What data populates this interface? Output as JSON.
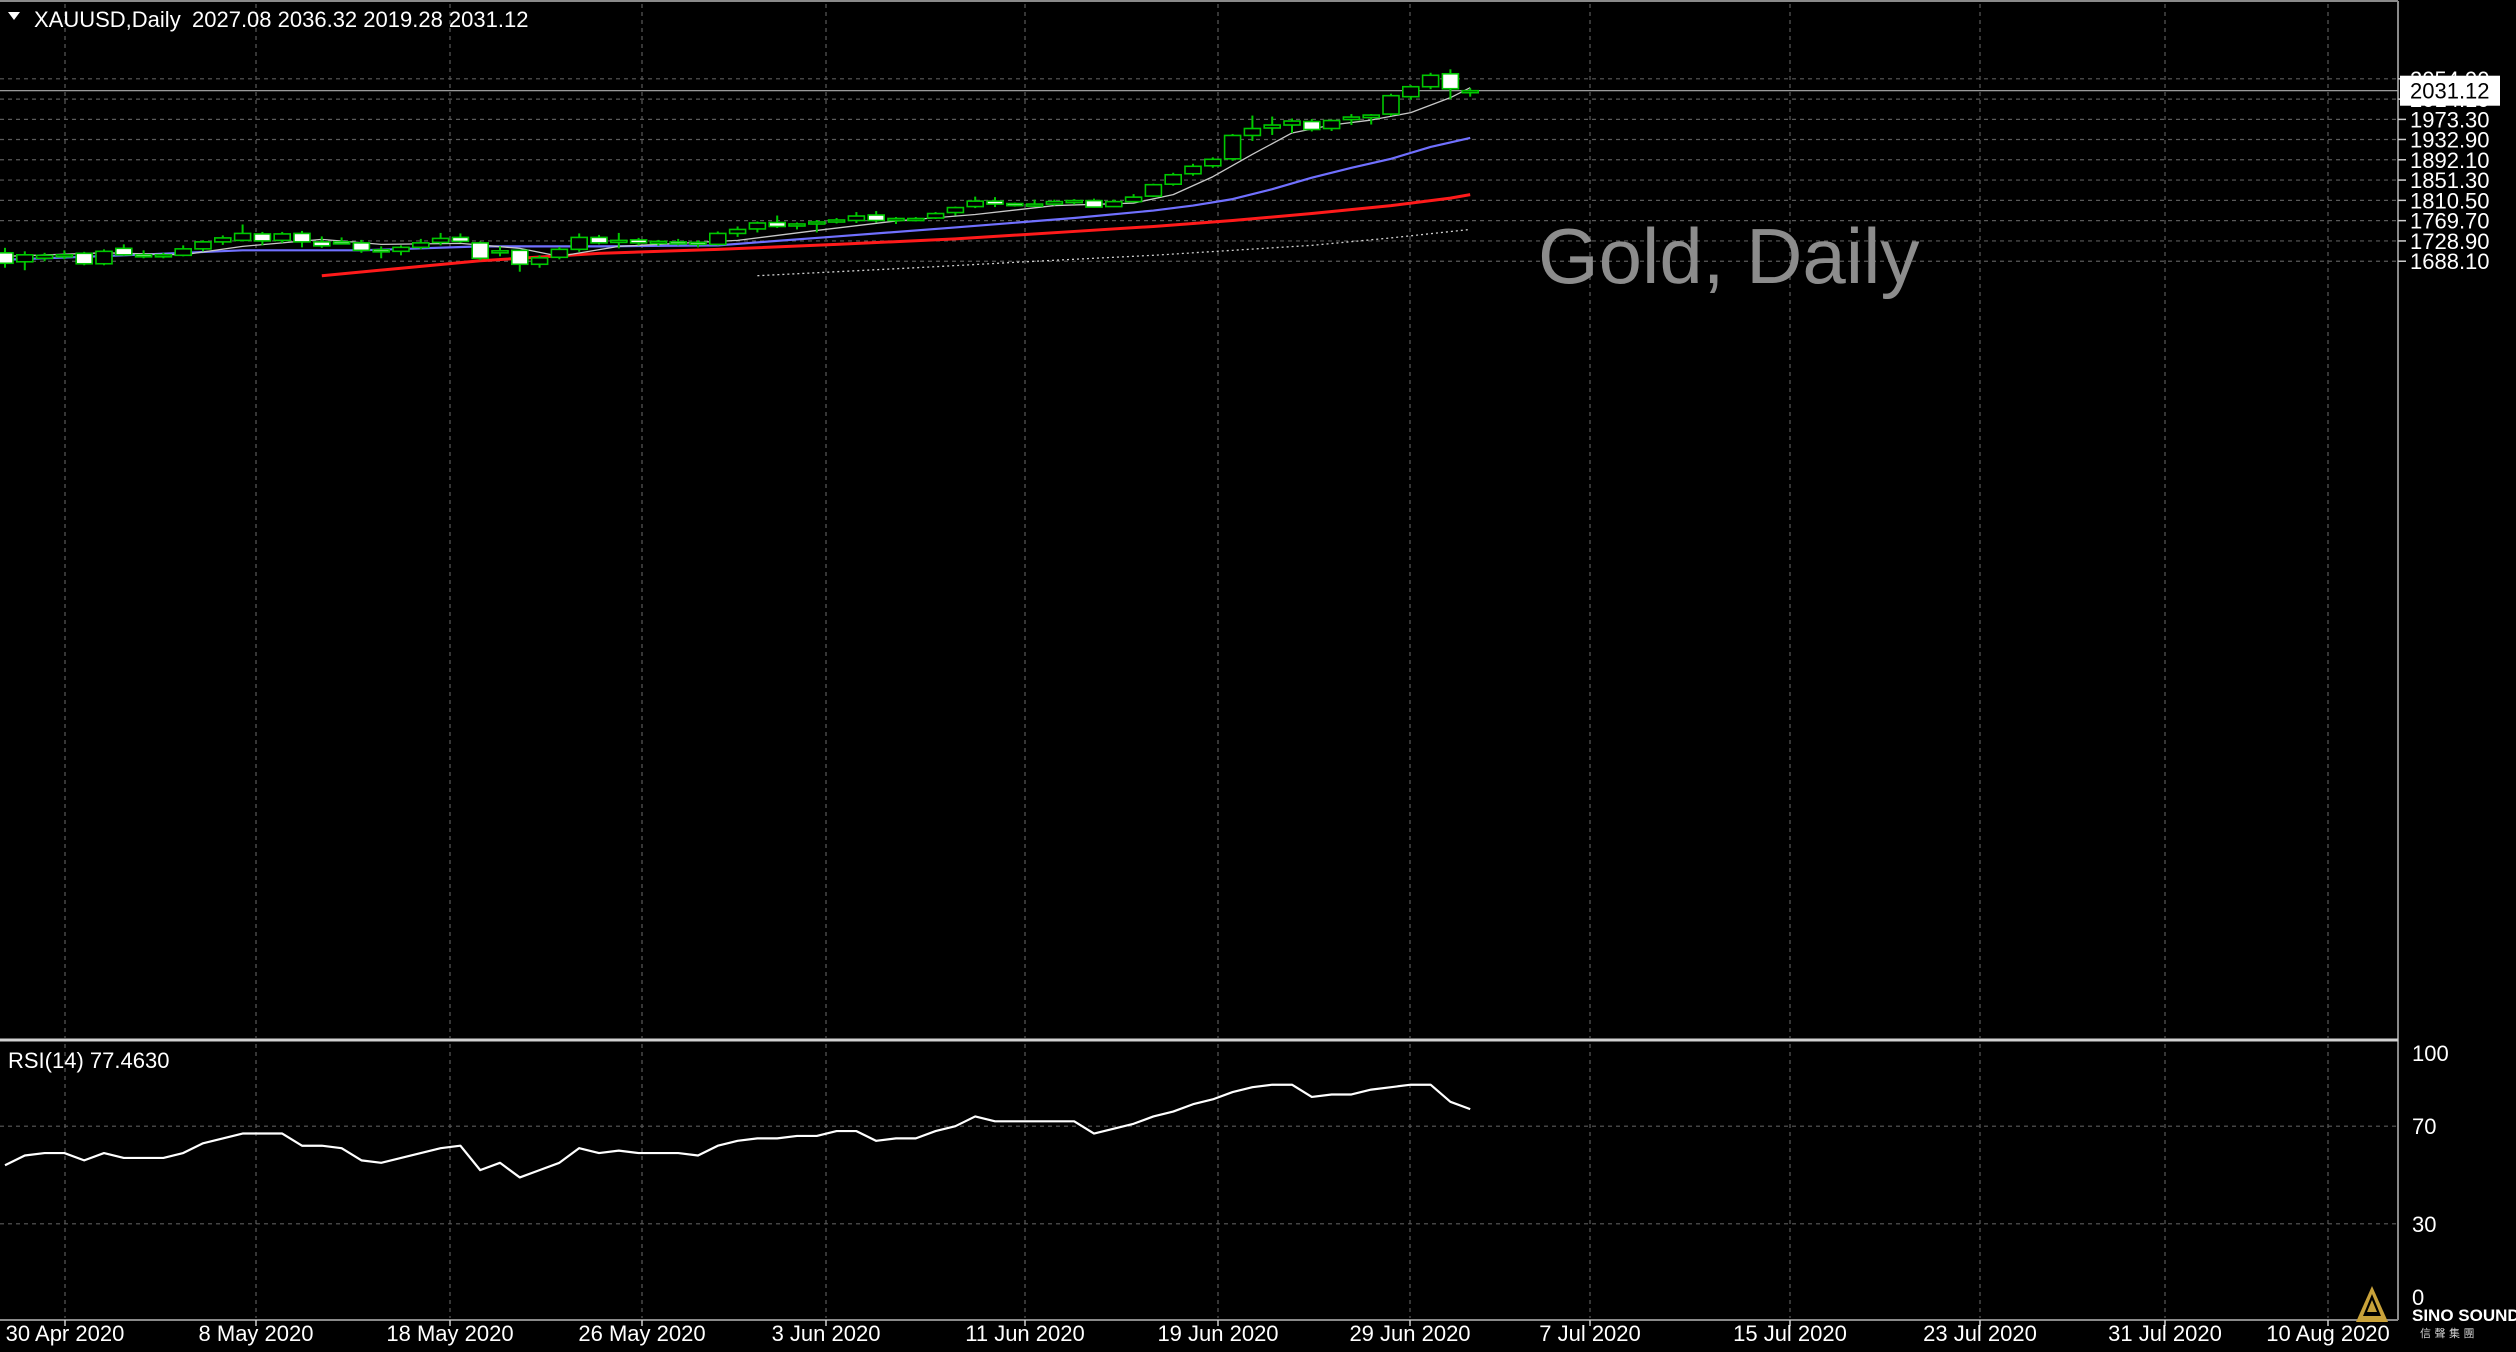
{
  "header": {
    "symbol_tf": "XAUUSD,Daily",
    "ohlc": "2027.08 2036.32 2019.28 2031.12"
  },
  "watermark": "Gold, Daily",
  "current_price_label": "2031.12",
  "rsi": {
    "label": "RSI(14) 77.4630",
    "levels": [
      "100",
      "70",
      "30",
      "0"
    ]
  },
  "logo": {
    "name": "SINO SOUND",
    "sub": "信 聲 集 團"
  },
  "colors": {
    "background": "#000000",
    "grid": "#5a5a5a",
    "bull_candle": "#00c800",
    "bear_candle_body": "#ffffff",
    "ma_fast": "#c8c8c8",
    "ma_mid": "#7070ff",
    "ma_slow": "#ff1a1a",
    "ma_long": "#cfcfcf",
    "rsi_line": "#ffffff"
  },
  "chart_data": [
    {
      "type": "candlestick",
      "title": "XAUUSD,Daily",
      "y_ticks": [
        "2054.90",
        "2014.10",
        "1973.30",
        "1932.90",
        "1892.10",
        "1851.30",
        "1810.50",
        "1769.70",
        "1728.90",
        "1688.10"
      ],
      "ylim": [
        1659,
        2080
      ],
      "x_ticks": [
        "30 Apr 2020",
        "8 May 2020",
        "18 May 2020",
        "26 May 2020",
        "3 Jun 2020",
        "11 Jun 2020",
        "19 Jun 2020",
        "29 Jun 2020",
        "7 Jul 2020",
        "15 Jul 2020",
        "23 Jul 2020",
        "31 Jul 2020",
        "10 Aug 2020"
      ],
      "grid": true,
      "candles": [
        {
          "o": 1705,
          "h": 1715,
          "c": 1684,
          "l": 1675
        },
        {
          "o": 1687,
          "h": 1708,
          "c": 1701,
          "l": 1670
        },
        {
          "o": 1694,
          "h": 1705,
          "c": 1700,
          "l": 1688
        },
        {
          "o": 1697,
          "h": 1710,
          "c": 1701,
          "l": 1692
        },
        {
          "o": 1704,
          "h": 1707,
          "c": 1683,
          "l": 1680
        },
        {
          "o": 1683,
          "h": 1712,
          "c": 1708,
          "l": 1680
        },
        {
          "o": 1714,
          "h": 1722,
          "c": 1701,
          "l": 1699
        },
        {
          "o": 1701,
          "h": 1710,
          "c": 1697,
          "l": 1694
        },
        {
          "o": 1698,
          "h": 1705,
          "c": 1701,
          "l": 1694
        },
        {
          "o": 1700,
          "h": 1720,
          "c": 1713,
          "l": 1698
        },
        {
          "o": 1713,
          "h": 1730,
          "c": 1727,
          "l": 1708
        },
        {
          "o": 1727,
          "h": 1740,
          "c": 1735,
          "l": 1721
        },
        {
          "o": 1730,
          "h": 1762,
          "c": 1744,
          "l": 1728
        },
        {
          "o": 1743,
          "h": 1747,
          "c": 1729,
          "l": 1720
        },
        {
          "o": 1730,
          "h": 1747,
          "c": 1743,
          "l": 1725
        },
        {
          "o": 1744,
          "h": 1749,
          "c": 1727,
          "l": 1716
        },
        {
          "o": 1727,
          "h": 1738,
          "c": 1719,
          "l": 1715
        },
        {
          "o": 1727,
          "h": 1736,
          "c": 1724,
          "l": 1722
        },
        {
          "o": 1725,
          "h": 1731,
          "c": 1710,
          "l": 1705
        },
        {
          "o": 1711,
          "h": 1718,
          "c": 1707,
          "l": 1694
        },
        {
          "o": 1708,
          "h": 1720,
          "c": 1716,
          "l": 1700
        },
        {
          "o": 1716,
          "h": 1733,
          "c": 1725,
          "l": 1712
        },
        {
          "o": 1726,
          "h": 1745,
          "c": 1734,
          "l": 1720
        },
        {
          "o": 1736,
          "h": 1744,
          "c": 1728,
          "l": 1725
        },
        {
          "o": 1725,
          "h": 1728,
          "c": 1694,
          "l": 1690
        },
        {
          "o": 1705,
          "h": 1718,
          "c": 1709,
          "l": 1698
        },
        {
          "o": 1710,
          "h": 1710,
          "c": 1682,
          "l": 1667
        },
        {
          "o": 1682,
          "h": 1700,
          "c": 1695,
          "l": 1675
        },
        {
          "o": 1696,
          "h": 1717,
          "c": 1712,
          "l": 1692
        },
        {
          "o": 1712,
          "h": 1744,
          "c": 1736,
          "l": 1707
        },
        {
          "o": 1736,
          "h": 1741,
          "c": 1725,
          "l": 1722
        },
        {
          "o": 1727,
          "h": 1745,
          "c": 1730,
          "l": 1714
        },
        {
          "o": 1731,
          "h": 1735,
          "c": 1725,
          "l": 1720
        },
        {
          "o": 1727,
          "h": 1731,
          "c": 1728,
          "l": 1719
        },
        {
          "o": 1727,
          "h": 1733,
          "c": 1726,
          "l": 1720
        },
        {
          "o": 1726,
          "h": 1730,
          "c": 1722,
          "l": 1716
        },
        {
          "o": 1722,
          "h": 1748,
          "c": 1744,
          "l": 1720
        },
        {
          "o": 1744,
          "h": 1758,
          "c": 1752,
          "l": 1737
        },
        {
          "o": 1753,
          "h": 1768,
          "c": 1765,
          "l": 1746
        },
        {
          "o": 1766,
          "h": 1780,
          "c": 1758,
          "l": 1755
        },
        {
          "o": 1760,
          "h": 1766,
          "c": 1763,
          "l": 1752
        },
        {
          "o": 1764,
          "h": 1771,
          "c": 1767,
          "l": 1746
        },
        {
          "o": 1768,
          "h": 1775,
          "c": 1771,
          "l": 1764
        },
        {
          "o": 1770,
          "h": 1787,
          "c": 1779,
          "l": 1765
        },
        {
          "o": 1781,
          "h": 1789,
          "c": 1770,
          "l": 1766
        },
        {
          "o": 1771,
          "h": 1777,
          "c": 1774,
          "l": 1763
        },
        {
          "o": 1772,
          "h": 1777,
          "c": 1774,
          "l": 1768
        },
        {
          "o": 1775,
          "h": 1787,
          "c": 1784,
          "l": 1773
        },
        {
          "o": 1786,
          "h": 1798,
          "c": 1796,
          "l": 1780
        },
        {
          "o": 1798,
          "h": 1818,
          "c": 1809,
          "l": 1795
        },
        {
          "o": 1809,
          "h": 1817,
          "c": 1803,
          "l": 1797
        },
        {
          "o": 1804,
          "h": 1806,
          "c": 1801,
          "l": 1798
        },
        {
          "o": 1801,
          "h": 1812,
          "c": 1803,
          "l": 1797
        },
        {
          "o": 1803,
          "h": 1812,
          "c": 1808,
          "l": 1800
        },
        {
          "o": 1808,
          "h": 1813,
          "c": 1810,
          "l": 1802
        },
        {
          "o": 1810,
          "h": 1814,
          "c": 1797,
          "l": 1796
        },
        {
          "o": 1798,
          "h": 1812,
          "c": 1808,
          "l": 1797
        },
        {
          "o": 1808,
          "h": 1823,
          "c": 1817,
          "l": 1806
        },
        {
          "o": 1819,
          "h": 1844,
          "c": 1842,
          "l": 1817
        },
        {
          "o": 1843,
          "h": 1866,
          "c": 1862,
          "l": 1840
        },
        {
          "o": 1864,
          "h": 1884,
          "c": 1879,
          "l": 1860
        },
        {
          "o": 1880,
          "h": 1897,
          "c": 1893,
          "l": 1876
        },
        {
          "o": 1894,
          "h": 1944,
          "c": 1941,
          "l": 1890
        },
        {
          "o": 1941,
          "h": 1981,
          "c": 1955,
          "l": 1930
        },
        {
          "o": 1956,
          "h": 1979,
          "c": 1962,
          "l": 1942
        },
        {
          "o": 1962,
          "h": 1975,
          "c": 1970,
          "l": 1946
        },
        {
          "o": 1969,
          "h": 1974,
          "c": 1953,
          "l": 1949
        },
        {
          "o": 1955,
          "h": 1973,
          "c": 1971,
          "l": 1950
        },
        {
          "o": 1973,
          "h": 1984,
          "c": 1978,
          "l": 1962
        },
        {
          "o": 1977,
          "h": 1984,
          "c": 1982,
          "l": 1963
        },
        {
          "o": 1984,
          "h": 2025,
          "c": 2021,
          "l": 1980
        },
        {
          "o": 2019,
          "h": 2042,
          "c": 2039,
          "l": 2013
        },
        {
          "o": 2039,
          "h": 2067,
          "c": 2062,
          "l": 2034
        },
        {
          "o": 2065,
          "h": 2074,
          "c": 2035,
          "l": 2014
        },
        {
          "o": 2027,
          "h": 2036,
          "c": 2031,
          "l": 2019
        }
      ],
      "ma_fast": [
        [
          0,
          1698
        ],
        [
          5,
          1705
        ],
        [
          9,
          1701
        ],
        [
          12,
          1718
        ],
        [
          16,
          1732
        ],
        [
          19,
          1722
        ],
        [
          23,
          1724
        ],
        [
          26,
          1714
        ],
        [
          28,
          1698
        ],
        [
          31,
          1718
        ],
        [
          35,
          1726
        ],
        [
          37,
          1730
        ],
        [
          41,
          1750
        ],
        [
          45,
          1769
        ],
        [
          49,
          1782
        ],
        [
          53,
          1800
        ],
        [
          57,
          1805
        ],
        [
          59,
          1822
        ],
        [
          61,
          1858
        ],
        [
          63,
          1903
        ],
        [
          65,
          1946
        ],
        [
          67,
          1962
        ],
        [
          69,
          1972
        ],
        [
          71,
          1987
        ],
        [
          73,
          2017
        ],
        [
          74,
          2037
        ]
      ],
      "ma_mid": [
        [
          0,
          1691
        ],
        [
          6,
          1700
        ],
        [
          12,
          1710
        ],
        [
          18,
          1710
        ],
        [
          24,
          1718
        ],
        [
          30,
          1718
        ],
        [
          36,
          1720
        ],
        [
          42,
          1738
        ],
        [
          48,
          1756
        ],
        [
          54,
          1775
        ],
        [
          58,
          1790
        ],
        [
          60,
          1800
        ],
        [
          62,
          1813
        ],
        [
          64,
          1833
        ],
        [
          66,
          1856
        ],
        [
          68,
          1876
        ],
        [
          70,
          1894
        ],
        [
          72,
          1918
        ],
        [
          74,
          1936
        ]
      ],
      "ma_slow": [
        [
          16,
          1659
        ],
        [
          20,
          1674
        ],
        [
          24,
          1689
        ],
        [
          30,
          1704
        ],
        [
          36,
          1712
        ],
        [
          42,
          1722
        ],
        [
          48,
          1733
        ],
        [
          54,
          1748
        ],
        [
          58,
          1758
        ],
        [
          62,
          1770
        ],
        [
          66,
          1784
        ],
        [
          70,
          1800
        ],
        [
          73,
          1815
        ],
        [
          74,
          1822
        ]
      ],
      "ma_long": [
        [
          38,
          1659
        ],
        [
          46,
          1675
        ],
        [
          52,
          1688
        ],
        [
          58,
          1700
        ],
        [
          62,
          1710
        ],
        [
          66,
          1720
        ],
        [
          70,
          1735
        ],
        [
          74,
          1752
        ]
      ]
    },
    {
      "type": "line",
      "title": "RSI(14) 77.4630",
      "ylim": [
        0,
        100
      ],
      "y_ticks": [
        "100",
        "70",
        "30",
        "0"
      ],
      "series": [
        {
          "values": [
            54,
            58,
            59,
            59,
            56,
            59,
            57,
            57,
            57,
            59,
            63,
            65,
            67,
            67,
            67,
            62,
            62,
            61,
            56,
            55,
            57,
            59,
            61,
            62,
            52,
            55,
            49,
            52,
            55,
            61,
            59,
            60,
            59,
            59,
            59,
            58,
            62,
            64,
            65,
            65,
            66,
            66,
            68,
            68,
            64,
            65,
            65,
            68,
            70,
            74,
            72,
            72,
            72,
            72,
            72,
            67,
            69,
            71,
            74,
            76,
            79,
            81,
            84,
            86,
            87,
            87,
            82,
            83,
            83,
            85,
            86,
            87,
            87,
            80,
            77
          ]
        }
      ]
    }
  ]
}
